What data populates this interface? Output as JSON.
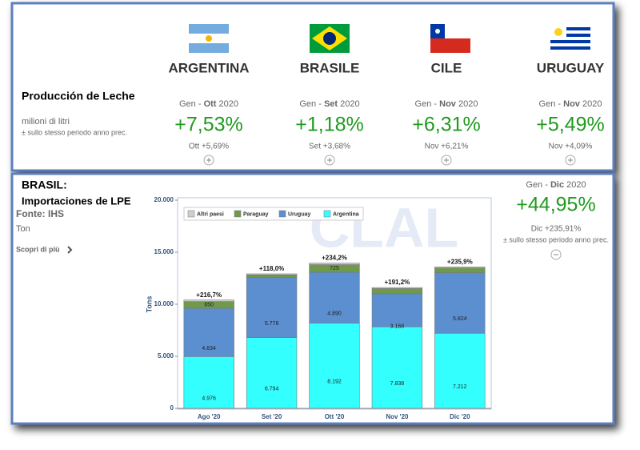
{
  "top_panel": {
    "title": "Producción de Leche",
    "unit": "milioni di litri",
    "note": "± sullo stesso periodo anno prec.",
    "countries": [
      {
        "name": "ARGENTINA",
        "period_start": "Gen -",
        "period_end": "Ott",
        "year": "2020",
        "change": "+7,53%",
        "month_change": "Ott +5,69%"
      },
      {
        "name": "BRASILE",
        "period_start": "Gen -",
        "period_end": "Set",
        "year": "2020",
        "change": "+1,18%",
        "month_change": "Set +3,68%"
      },
      {
        "name": "CILE",
        "period_start": "Gen -",
        "period_end": "Nov",
        "year": "2020",
        "change": "+6,31%",
        "month_change": "Nov +6,21%"
      },
      {
        "name": "URUGUAY",
        "period_start": "Gen -",
        "period_end": "Nov",
        "year": "2020",
        "change": "+5,49%",
        "month_change": "Nov +4,09%"
      }
    ]
  },
  "bottom_panel": {
    "title_1": "BRASIL:",
    "title_2": "Importaciones de LPE",
    "source": "Fonte: IHS",
    "unit": "Ton",
    "link": "Scopri di più",
    "period_start": "Gen -",
    "period_end": "Dic",
    "year": "2020",
    "change": "+44,95%",
    "month_change": "Dic +235,91%",
    "note": "± sullo stesso periodo anno prec."
  },
  "chart_data": {
    "type": "stacked_bar",
    "watermark": "CLAL",
    "y_label": "Tons",
    "categories": [
      "Ago '20",
      "Set '20",
      "Ott '20",
      "Nov '20",
      "Dic '20"
    ],
    "series": [
      {
        "name": "Argentina",
        "color": "#33ffff",
        "values": [
          4976,
          6794,
          8192,
          7838,
          7212
        ],
        "value_labels": [
          "4.976",
          "6.794",
          "8.192",
          "7.838",
          "7.212"
        ]
      },
      {
        "name": "Uruguay",
        "color": "#5b8fcf",
        "values": [
          4634,
          5778,
          4890,
          3168,
          5824
        ],
        "value_labels": [
          "4.634",
          "5.778",
          "4.890",
          "3.168",
          "5.824"
        ]
      },
      {
        "name": "Paraguay",
        "color": "#6f9a4c",
        "values": [
          650,
          250,
          725,
          500,
          450
        ],
        "value_labels": [
          "650",
          null,
          "725",
          null,
          null
        ]
      },
      {
        "name": "Altri paesi",
        "color": "#cfcfcf",
        "values": [
          150,
          100,
          150,
          100,
          100
        ],
        "value_labels": [
          null,
          null,
          null,
          null,
          null
        ]
      }
    ],
    "annotations": [
      "+216,7%",
      "+118,0%",
      "+234,2%",
      "+191,2%",
      "+235,9%"
    ],
    "ylim": [
      0,
      20000
    ],
    "yticks": [
      0,
      {
        "value": 5000,
        "label": "5.000"
      },
      {
        "value": 10000,
        "label": "10.000"
      },
      {
        "value": 15000,
        "label": "15.000"
      },
      {
        "value": 20000,
        "label": "20.000"
      }
    ],
    "grid": false
  }
}
